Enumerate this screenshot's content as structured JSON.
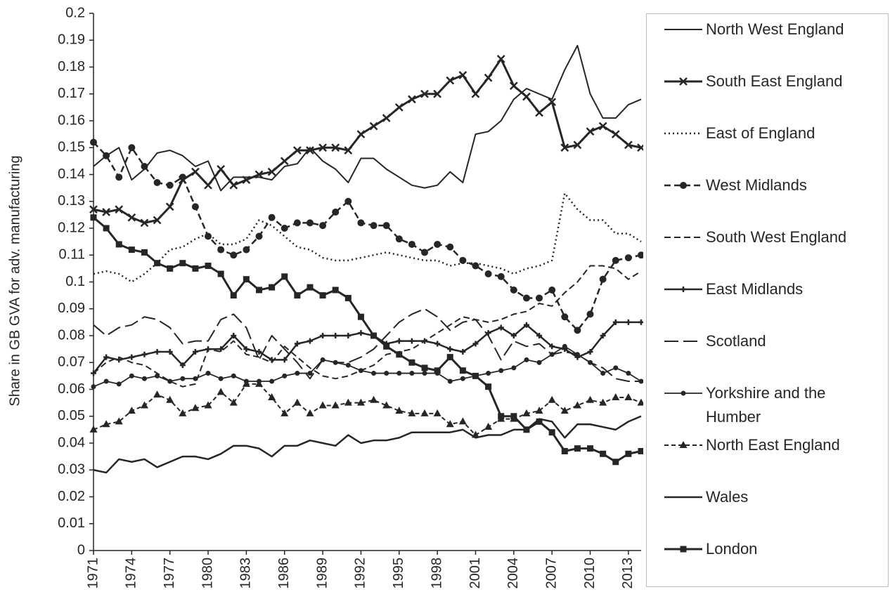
{
  "chart_data": {
    "type": "line",
    "y_label": "Share in GB GVA for adv. manufacturing",
    "x": [
      1971,
      1972,
      1973,
      1974,
      1975,
      1976,
      1977,
      1978,
      1979,
      1980,
      1981,
      1982,
      1983,
      1984,
      1985,
      1986,
      1987,
      1988,
      1989,
      1990,
      1991,
      1992,
      1993,
      1994,
      1995,
      1996,
      1997,
      1998,
      1999,
      2000,
      2001,
      2002,
      2003,
      2004,
      2005,
      2006,
      2007,
      2008,
      2009,
      2010,
      2011,
      2012,
      2013,
      2014
    ],
    "xlim": [
      1971,
      2014
    ],
    "xticks": [
      1971,
      1974,
      1977,
      1980,
      1983,
      1986,
      1989,
      1992,
      1995,
      1998,
      2001,
      2004,
      2007,
      2010,
      2013
    ],
    "ylim": [
      0,
      0.2
    ],
    "yticks": [
      0,
      0.01,
      0.02,
      0.03,
      0.04,
      0.05,
      0.06,
      0.07,
      0.08,
      0.09,
      0.1,
      0.11,
      0.12,
      0.13,
      0.14,
      0.15,
      0.16,
      0.17,
      0.18,
      0.19,
      0.2
    ],
    "grid": false,
    "legend": "right",
    "series": [
      {
        "name": "North West England",
        "color": "#262626",
        "dash": "solid",
        "marker": "none",
        "width": 2,
        "values": [
          0.143,
          0.147,
          0.15,
          0.138,
          0.142,
          0.148,
          0.149,
          0.147,
          0.143,
          0.145,
          0.134,
          0.139,
          0.139,
          0.139,
          0.138,
          0.143,
          0.144,
          0.15,
          0.145,
          0.142,
          0.137,
          0.146,
          0.146,
          0.142,
          0.139,
          0.136,
          0.135,
          0.136,
          0.141,
          0.137,
          0.155,
          0.156,
          0.16,
          0.168,
          0.172,
          0.17,
          0.168,
          0.179,
          0.188,
          0.17,
          0.161,
          0.161,
          0.166,
          0.168
        ]
      },
      {
        "name": "South East England",
        "color": "#262626",
        "dash": "solid",
        "marker": "x",
        "width": 3,
        "values": [
          0.127,
          0.126,
          0.127,
          0.124,
          0.122,
          0.123,
          0.128,
          0.138,
          0.141,
          0.136,
          0.142,
          0.136,
          0.138,
          0.14,
          0.141,
          0.145,
          0.149,
          0.149,
          0.15,
          0.15,
          0.149,
          0.155,
          0.158,
          0.161,
          0.165,
          0.168,
          0.17,
          0.17,
          0.175,
          0.177,
          0.17,
          0.176,
          0.183,
          0.173,
          0.169,
          0.163,
          0.167,
          0.15,
          0.151,
          0.156,
          0.158,
          0.155,
          0.151,
          0.15
        ]
      },
      {
        "name": "East of England",
        "color": "#262626",
        "dash": "dotted",
        "marker": "none",
        "width": 2.5,
        "values": [
          0.103,
          0.104,
          0.103,
          0.1,
          0.103,
          0.107,
          0.112,
          0.113,
          0.116,
          0.118,
          0.114,
          0.114,
          0.116,
          0.123,
          0.121,
          0.117,
          0.113,
          0.112,
          0.109,
          0.108,
          0.108,
          0.109,
          0.11,
          0.111,
          0.11,
          0.109,
          0.108,
          0.108,
          0.106,
          0.107,
          0.107,
          0.106,
          0.105,
          0.103,
          0.105,
          0.106,
          0.108,
          0.133,
          0.127,
          0.123,
          0.123,
          0.118,
          0.118,
          0.115
        ]
      },
      {
        "name": "West Midlands",
        "color": "#262626",
        "dash": "dashed",
        "marker": "circle",
        "width": 2.5,
        "values": [
          0.152,
          0.147,
          0.139,
          0.15,
          0.143,
          0.137,
          0.136,
          0.139,
          0.128,
          0.117,
          0.112,
          0.11,
          0.112,
          0.117,
          0.124,
          0.12,
          0.122,
          0.122,
          0.121,
          0.126,
          0.13,
          0.122,
          0.121,
          0.121,
          0.116,
          0.114,
          0.111,
          0.114,
          0.113,
          0.108,
          0.106,
          0.103,
          0.102,
          0.097,
          0.094,
          0.094,
          0.097,
          0.087,
          0.082,
          0.088,
          0.101,
          0.108,
          0.109,
          0.11
        ]
      },
      {
        "name": "South West England",
        "color": "#262626",
        "dash": "dashed",
        "marker": "none",
        "width": 2,
        "values": [
          0.066,
          0.07,
          0.072,
          0.07,
          0.069,
          0.066,
          0.063,
          0.061,
          0.062,
          0.075,
          0.074,
          0.078,
          0.073,
          0.072,
          0.07,
          0.076,
          0.072,
          0.068,
          0.065,
          0.064,
          0.065,
          0.067,
          0.069,
          0.073,
          0.074,
          0.075,
          0.078,
          0.081,
          0.084,
          0.087,
          0.086,
          0.085,
          0.086,
          0.088,
          0.089,
          0.092,
          0.091,
          0.096,
          0.1,
          0.106,
          0.106,
          0.105,
          0.101,
          0.104
        ]
      },
      {
        "name": "East Midlands",
        "color": "#262626",
        "dash": "solid",
        "marker": "plus",
        "width": 2.5,
        "values": [
          0.066,
          0.072,
          0.071,
          0.072,
          0.073,
          0.074,
          0.074,
          0.069,
          0.074,
          0.075,
          0.075,
          0.08,
          0.075,
          0.074,
          0.071,
          0.071,
          0.077,
          0.078,
          0.08,
          0.08,
          0.08,
          0.081,
          0.08,
          0.077,
          0.078,
          0.078,
          0.078,
          0.077,
          0.075,
          0.074,
          0.077,
          0.081,
          0.083,
          0.08,
          0.084,
          0.08,
          0.076,
          0.075,
          0.072,
          0.074,
          0.08,
          0.085,
          0.085,
          0.085
        ]
      },
      {
        "name": "Scotland",
        "color": "#262626",
        "dash": "long-dash",
        "marker": "none",
        "width": 2,
        "values": [
          0.084,
          0.08,
          0.083,
          0.084,
          0.087,
          0.086,
          0.083,
          0.077,
          0.078,
          0.078,
          0.086,
          0.088,
          0.083,
          0.071,
          0.08,
          0.075,
          0.07,
          0.064,
          0.071,
          0.07,
          0.07,
          0.072,
          0.075,
          0.08,
          0.085,
          0.088,
          0.09,
          0.087,
          0.082,
          0.085,
          0.086,
          0.08,
          0.071,
          0.078,
          0.076,
          0.077,
          0.073,
          0.074,
          0.073,
          0.07,
          0.068,
          0.064,
          0.063,
          0.063
        ]
      },
      {
        "name": "Yorkshire and the Humber",
        "color": "#262626",
        "dash": "solid",
        "marker": "dot",
        "width": 1.8,
        "values": [
          0.061,
          0.063,
          0.062,
          0.065,
          0.064,
          0.065,
          0.063,
          0.064,
          0.064,
          0.066,
          0.064,
          0.065,
          0.063,
          0.063,
          0.063,
          0.065,
          0.066,
          0.066,
          0.071,
          0.07,
          0.069,
          0.067,
          0.066,
          0.066,
          0.066,
          0.066,
          0.066,
          0.066,
          0.063,
          0.064,
          0.065,
          0.066,
          0.067,
          0.068,
          0.071,
          0.07,
          0.073,
          0.076,
          0.073,
          0.07,
          0.066,
          0.068,
          0.066,
          0.063
        ]
      },
      {
        "name": "North East England",
        "color": "#262626",
        "dash": "short-dash",
        "marker": "triangle",
        "width": 2,
        "values": [
          0.045,
          0.047,
          0.048,
          0.052,
          0.054,
          0.058,
          0.056,
          0.051,
          0.053,
          0.054,
          0.059,
          0.055,
          0.062,
          0.062,
          0.057,
          0.051,
          0.055,
          0.051,
          0.054,
          0.054,
          0.055,
          0.055,
          0.056,
          0.054,
          0.052,
          0.051,
          0.051,
          0.051,
          0.047,
          0.048,
          0.043,
          0.046,
          0.049,
          0.049,
          0.051,
          0.052,
          0.056,
          0.052,
          0.054,
          0.056,
          0.055,
          0.057,
          0.057,
          0.055
        ]
      },
      {
        "name": "Wales",
        "color": "#262626",
        "dash": "solid",
        "marker": "none",
        "width": 2.5,
        "values": [
          0.03,
          0.029,
          0.034,
          0.033,
          0.034,
          0.031,
          0.033,
          0.035,
          0.035,
          0.034,
          0.036,
          0.039,
          0.039,
          0.038,
          0.035,
          0.039,
          0.039,
          0.041,
          0.04,
          0.039,
          0.043,
          0.04,
          0.041,
          0.041,
          0.042,
          0.044,
          0.044,
          0.044,
          0.044,
          0.045,
          0.042,
          0.043,
          0.043,
          0.045,
          0.045,
          0.049,
          0.048,
          0.042,
          0.047,
          0.047,
          0.046,
          0.045,
          0.048,
          0.05
        ]
      },
      {
        "name": "London",
        "color": "#262626",
        "dash": "solid",
        "marker": "square",
        "width": 3,
        "values": [
          0.124,
          0.12,
          0.114,
          0.112,
          0.111,
          0.107,
          0.105,
          0.107,
          0.105,
          0.106,
          0.103,
          0.095,
          0.101,
          0.097,
          0.098,
          0.102,
          0.095,
          0.098,
          0.095,
          0.097,
          0.094,
          0.087,
          0.08,
          0.076,
          0.073,
          0.07,
          0.068,
          0.067,
          0.072,
          0.067,
          0.065,
          0.061,
          0.05,
          0.05,
          0.045,
          0.048,
          0.044,
          0.037,
          0.038,
          0.038,
          0.036,
          0.033,
          0.036,
          0.037
        ]
      }
    ]
  }
}
